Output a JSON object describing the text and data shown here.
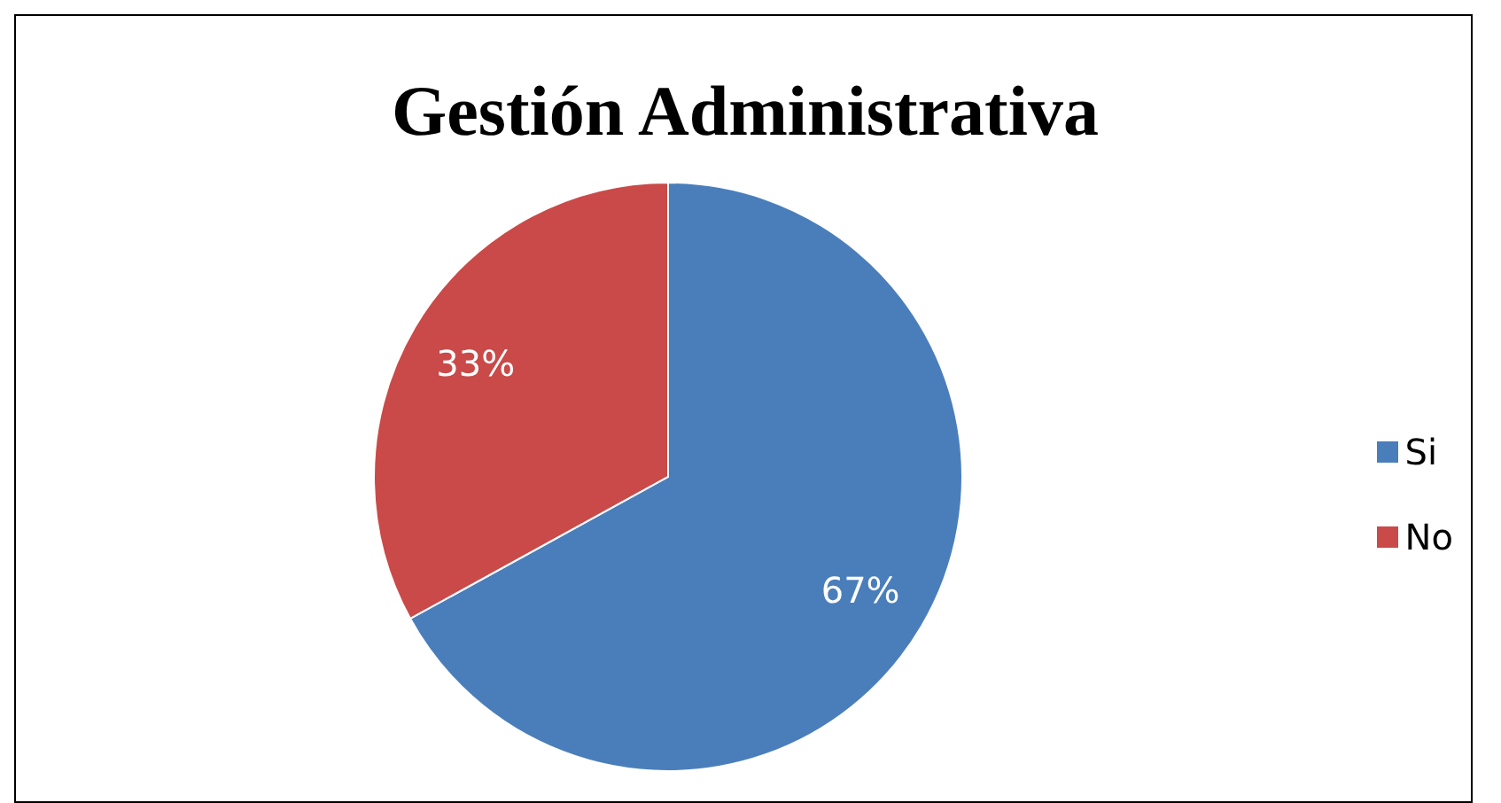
{
  "chart_data": {
    "type": "pie",
    "title": "Gestión Administrativa",
    "categories": [
      "Si",
      "No"
    ],
    "values": [
      67,
      33
    ],
    "colors": [
      "#4a7ebb",
      "#c94a48"
    ],
    "value_labels": [
      "67%",
      "33%"
    ],
    "legend": "right"
  }
}
